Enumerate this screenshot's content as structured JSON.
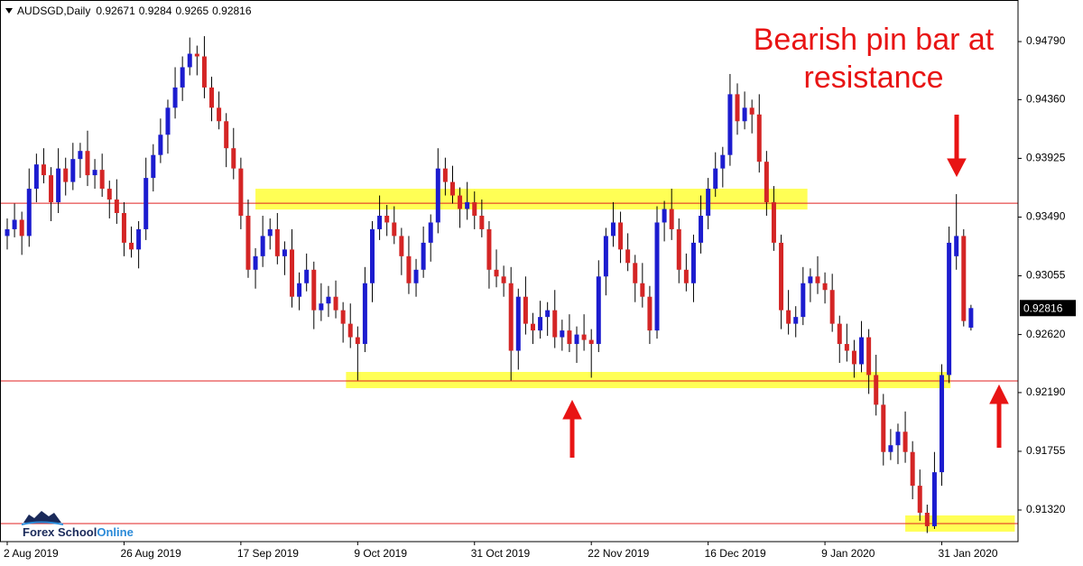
{
  "chart_data": {
    "type": "candlestick",
    "symbol": "AUDSGD,Daily",
    "annotation": [
      "Bearish pin bar at",
      "resistance"
    ],
    "logo": [
      "Forex School",
      "Online"
    ],
    "categories": [
      "2 Aug 2019",
      null,
      null,
      null,
      null,
      null,
      null,
      null,
      null,
      null,
      null,
      null,
      null,
      null,
      null,
      null,
      "26 Aug 2019",
      null,
      null,
      null,
      null,
      null,
      null,
      null,
      null,
      null,
      null,
      null,
      null,
      null,
      null,
      null,
      "17 Sep 2019",
      null,
      null,
      null,
      null,
      null,
      null,
      null,
      null,
      null,
      null,
      null,
      null,
      null,
      null,
      null,
      "9 Oct 2019",
      null,
      null,
      null,
      null,
      null,
      null,
      null,
      null,
      null,
      null,
      null,
      null,
      null,
      null,
      null,
      "31 Oct 2019",
      null,
      null,
      null,
      null,
      null,
      null,
      null,
      null,
      null,
      null,
      null,
      null,
      null,
      null,
      null,
      "22 Nov 2019",
      null,
      null,
      null,
      null,
      null,
      null,
      null,
      null,
      null,
      null,
      null,
      null,
      null,
      null,
      null,
      "16 Dec 2019",
      null,
      null,
      null,
      null,
      null,
      null,
      null,
      null,
      null,
      null,
      null,
      null,
      null,
      null,
      null,
      "9 Jan 2020",
      null,
      null,
      null,
      null,
      null,
      null,
      null,
      null,
      null,
      null,
      null,
      null,
      null,
      null,
      null,
      "31 Jan 2020",
      null,
      null,
      null,
      null
    ],
    "open": [
      0.9335,
      0.934,
      0.9347,
      0.9335,
      0.937,
      0.9388,
      0.938,
      0.936,
      0.9385,
      0.9375,
      0.9392,
      0.9398,
      0.938,
      0.9384,
      0.937,
      0.9362,
      0.9352,
      0.933,
      0.9325,
      0.934,
      0.9378,
      0.9395,
      0.941,
      0.943,
      0.9445,
      0.946,
      0.947,
      0.9468,
      0.9445,
      0.943,
      0.942,
      0.94,
      0.9385,
      0.935,
      0.931,
      0.932,
      0.9335,
      0.934,
      0.932,
      0.9325,
      0.929,
      0.93,
      0.931,
      0.928,
      0.9285,
      0.929,
      0.928,
      0.927,
      0.926,
      0.9255,
      0.93,
      0.934,
      0.935,
      0.9345,
      0.9335,
      0.932,
      0.93,
      0.931,
      0.933,
      0.9345,
      0.9385,
      0.9375,
      0.9365,
      0.9355,
      0.936,
      0.935,
      0.934,
      0.931,
      0.9305,
      0.93,
      0.925,
      0.929,
      0.927,
      0.9265,
      0.9275,
      0.928,
      0.926,
      0.9265,
      0.9255,
      0.9262,
      0.9258,
      0.9255,
      0.9305,
      0.9335,
      0.9345,
      0.9325,
      0.9315,
      0.93,
      0.929,
      0.9265,
      0.9345,
      0.9355,
      0.934,
      0.931,
      0.93,
      0.933,
      0.935,
      0.937,
      0.9385,
      0.9395,
      0.944,
      0.942,
      0.943,
      0.9425,
      0.939,
      0.936,
      0.933,
      0.928,
      0.927,
      0.9275,
      0.93,
      0.9305,
      0.93,
      0.9295,
      0.927,
      0.9255,
      0.925,
      0.924,
      0.926,
      0.9232,
      0.921,
      0.9175,
      0.918,
      0.919,
      0.9175,
      0.915,
      0.913,
      0.912,
      0.916,
      0.9232,
      0.932,
      0.9335,
      0.92671
    ],
    "high": [
      0.9348,
      0.9359,
      0.9353,
      0.9385,
      0.9396,
      0.94,
      0.9386,
      0.94,
      0.9393,
      0.9404,
      0.9404,
      0.9413,
      0.9392,
      0.9396,
      0.9376,
      0.9377,
      0.936,
      0.9342,
      0.9346,
      0.9393,
      0.9403,
      0.9422,
      0.9436,
      0.946,
      0.9468,
      0.9482,
      0.9476,
      0.9483,
      0.9453,
      0.9442,
      0.9426,
      0.9415,
      0.9393,
      0.9362,
      0.9326,
      0.935,
      0.9348,
      0.9352,
      0.9331,
      0.934,
      0.9308,
      0.9322,
      0.9316,
      0.93,
      0.9298,
      0.9302,
      0.9286,
      0.9285,
      0.9268,
      0.9312,
      0.9346,
      0.9365,
      0.9358,
      0.9357,
      0.9341,
      0.9335,
      0.9318,
      0.9342,
      0.9351,
      0.94,
      0.9393,
      0.9387,
      0.9371,
      0.9375,
      0.9368,
      0.9362,
      0.9346,
      0.9325,
      0.9313,
      0.9312,
      0.9296,
      0.9305,
      0.9278,
      0.9287,
      0.9286,
      0.9295,
      0.9273,
      0.9277,
      0.9268,
      0.9277,
      0.9266,
      0.9317,
      0.9341,
      0.936,
      0.9353,
      0.9337,
      0.9321,
      0.9315,
      0.9298,
      0.9357,
      0.9361,
      0.937,
      0.9348,
      0.9322,
      0.9336,
      0.9365,
      0.9378,
      0.9397,
      0.9401,
      0.9455,
      0.9448,
      0.9442,
      0.9436,
      0.944,
      0.9398,
      0.9372,
      0.9336,
      0.9295,
      0.9283,
      0.9312,
      0.9311,
      0.932,
      0.9308,
      0.9307,
      0.9276,
      0.927,
      0.9258,
      0.9272,
      0.9266,
      0.9247,
      0.9218,
      0.9192,
      0.9196,
      0.9205,
      0.9183,
      0.9162,
      0.9136,
      0.9175,
      0.924,
      0.9342,
      0.9366,
      0.934,
      0.9284
    ],
    "low": [
      0.9325,
      0.9334,
      0.9321,
      0.9327,
      0.936,
      0.9374,
      0.9346,
      0.9352,
      0.9365,
      0.9369,
      0.9378,
      0.9372,
      0.937,
      0.9364,
      0.9348,
      0.9344,
      0.932,
      0.9319,
      0.9311,
      0.9332,
      0.9368,
      0.9389,
      0.9396,
      0.9422,
      0.9435,
      0.9454,
      0.9454,
      0.9437,
      0.942,
      0.9414,
      0.9386,
      0.9377,
      0.934,
      0.9304,
      0.9296,
      0.9312,
      0.9325,
      0.9314,
      0.9306,
      0.9282,
      0.928,
      0.9294,
      0.9266,
      0.9272,
      0.9275,
      0.9274,
      0.9256,
      0.9252,
      0.9228,
      0.9249,
      0.9286,
      0.9332,
      0.9335,
      0.9329,
      0.9306,
      0.9292,
      0.929,
      0.9304,
      0.9316,
      0.9337,
      0.9365,
      0.9359,
      0.9341,
      0.9347,
      0.934,
      0.9334,
      0.9296,
      0.9297,
      0.929,
      0.9228,
      0.9236,
      0.9262,
      0.9255,
      0.9259,
      0.9261,
      0.9252,
      0.925,
      0.9249,
      0.9241,
      0.925,
      0.923,
      0.9249,
      0.9291,
      0.9327,
      0.9315,
      0.9309,
      0.9286,
      0.9282,
      0.9255,
      0.9259,
      0.9331,
      0.9332,
      0.93,
      0.9294,
      0.9286,
      0.9322,
      0.934,
      0.9364,
      0.9371,
      0.9387,
      0.941,
      0.9414,
      0.9411,
      0.9382,
      0.935,
      0.9324,
      0.9266,
      0.9262,
      0.926,
      0.9269,
      0.9286,
      0.9292,
      0.9285,
      0.9264,
      0.9241,
      0.9242,
      0.923,
      0.9234,
      0.9218,
      0.9202,
      0.9165,
      0.9169,
      0.9166,
      0.9167,
      0.914,
      0.9124,
      0.9115,
      0.9118,
      0.915,
      0.9226,
      0.931,
      0.9268,
      0.9265
    ],
    "close": [
      0.934,
      0.9347,
      0.9335,
      0.937,
      0.9388,
      0.938,
      0.936,
      0.9385,
      0.9375,
      0.9392,
      0.9398,
      0.938,
      0.9384,
      0.937,
      0.9362,
      0.9352,
      0.933,
      0.9325,
      0.934,
      0.9378,
      0.9395,
      0.941,
      0.943,
      0.9445,
      0.946,
      0.947,
      0.9468,
      0.9445,
      0.943,
      0.942,
      0.94,
      0.9385,
      0.935,
      0.931,
      0.932,
      0.9335,
      0.934,
      0.932,
      0.9325,
      0.929,
      0.93,
      0.931,
      0.928,
      0.9285,
      0.929,
      0.928,
      0.927,
      0.926,
      0.9255,
      0.93,
      0.934,
      0.935,
      0.9345,
      0.9335,
      0.932,
      0.93,
      0.931,
      0.933,
      0.9345,
      0.9385,
      0.9375,
      0.9365,
      0.9355,
      0.936,
      0.935,
      0.934,
      0.931,
      0.9305,
      0.93,
      0.925,
      0.929,
      0.927,
      0.9265,
      0.9275,
      0.928,
      0.926,
      0.9265,
      0.9255,
      0.9262,
      0.9258,
      0.9255,
      0.9305,
      0.9335,
      0.9345,
      0.9325,
      0.9315,
      0.93,
      0.929,
      0.9265,
      0.9345,
      0.9355,
      0.934,
      0.931,
      0.93,
      0.933,
      0.935,
      0.937,
      0.9385,
      0.9395,
      0.944,
      0.942,
      0.943,
      0.9425,
      0.939,
      0.936,
      0.933,
      0.928,
      0.927,
      0.9275,
      0.93,
      0.9305,
      0.93,
      0.9295,
      0.927,
      0.9255,
      0.925,
      0.924,
      0.926,
      0.9232,
      0.921,
      0.9175,
      0.918,
      0.919,
      0.9175,
      0.915,
      0.913,
      0.912,
      0.916,
      0.9232,
      0.933,
      0.9335,
      0.9272,
      0.92816
    ],
    "colors": {
      "up": "#1c1ccf",
      "down": "#d42525",
      "level": "#e02020",
      "zone": "#ffff55"
    },
    "ylim": [
      0.91086,
      0.95098
    ],
    "yticks": [
      {
        "value": 0.9479,
        "label": "0.94790"
      },
      {
        "value": 0.9436,
        "label": "0.94360"
      },
      0.93925,
      {
        "value": 0.9349,
        "label": "0.93490"
      },
      0.93055,
      {
        "value": 0.9262,
        "label": "0.92620"
      },
      {
        "value": 0.9219,
        "label": "0.92190"
      },
      0.91755,
      {
        "value": 0.9132,
        "label": "0.91320"
      }
    ],
    "last_price": {
      "value": 0.92816,
      "label": "0.92816"
    },
    "levels": [
      0.93593,
      0.92276,
      0.9122
    ],
    "zones": [
      {
        "start": 34,
        "end": 109.6,
        "low": 0.93546,
        "high": 0.937
      },
      {
        "start": 46.4,
        "end": 129.2,
        "low": 0.92223,
        "high": 0.92343
      },
      {
        "start": 123,
        "end": 138,
        "low": 0.9116,
        "high": 0.9128
      }
    ]
  }
}
